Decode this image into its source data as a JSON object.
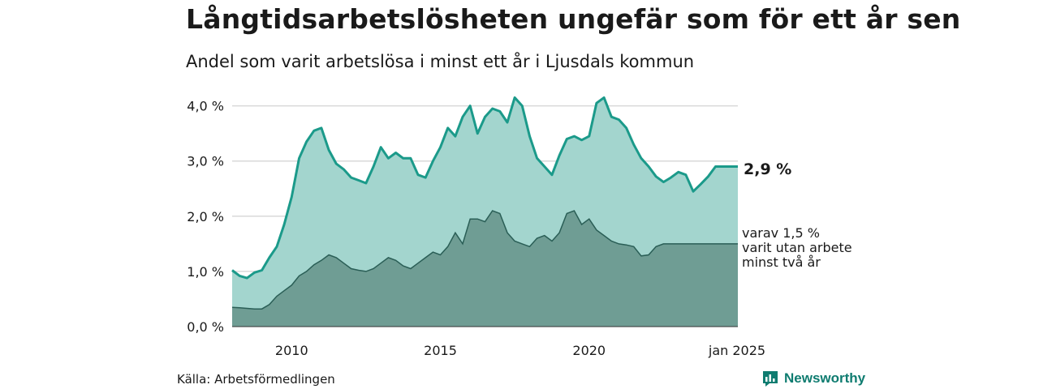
{
  "title": "Långtidsarbetslösheten ungefär som för ett år sen",
  "subtitle": "Andel som varit arbetslösa i minst ett år i Ljusdals kommun",
  "source": "Källa: Arbetsförmedlingen",
  "brand": {
    "name": "Newsworthy",
    "icon": "newsworthy-logo-icon"
  },
  "chart_data": {
    "type": "area",
    "x": [
      "2008-01",
      "2008-04",
      "2008-07",
      "2008-10",
      "2009-01",
      "2009-04",
      "2009-07",
      "2009-10",
      "2010-01",
      "2010-04",
      "2010-07",
      "2010-10",
      "2011-01",
      "2011-04",
      "2011-07",
      "2011-10",
      "2012-01",
      "2012-04",
      "2012-07",
      "2012-10",
      "2013-01",
      "2013-04",
      "2013-07",
      "2013-10",
      "2014-01",
      "2014-04",
      "2014-07",
      "2014-10",
      "2015-01",
      "2015-04",
      "2015-07",
      "2015-10",
      "2016-01",
      "2016-04",
      "2016-07",
      "2016-10",
      "2017-01",
      "2017-04",
      "2017-07",
      "2017-10",
      "2018-01",
      "2018-04",
      "2018-07",
      "2018-10",
      "2019-01",
      "2019-04",
      "2019-07",
      "2019-10",
      "2020-01",
      "2020-04",
      "2020-07",
      "2020-10",
      "2021-01",
      "2021-04",
      "2021-07",
      "2021-10",
      "2022-01",
      "2022-04",
      "2022-07",
      "2022-10",
      "2023-01",
      "2023-04",
      "2023-07",
      "2023-10",
      "2024-01",
      "2024-04",
      "2024-07",
      "2024-10",
      "2025-01"
    ],
    "series": [
      {
        "values": [
          1.02,
          0.92,
          0.88,
          0.98,
          1.02,
          1.25,
          1.45,
          1.85,
          2.35,
          3.05,
          3.35,
          3.55,
          3.6,
          3.2,
          2.95,
          2.85,
          2.7,
          2.65,
          2.6,
          2.9,
          3.25,
          3.05,
          3.15,
          3.05,
          3.05,
          2.75,
          2.7,
          3.0,
          3.25,
          3.6,
          3.45,
          3.8,
          4.0,
          3.5,
          3.8,
          3.95,
          3.9,
          3.7,
          4.15,
          4.0,
          3.45,
          3.05,
          2.9,
          2.75,
          3.1,
          3.4,
          3.45,
          3.38,
          3.45,
          4.05,
          4.15,
          3.8,
          3.75,
          3.6,
          3.3,
          3.05,
          2.9,
          2.72,
          2.62,
          2.7,
          2.8,
          2.75,
          2.45,
          2.58,
          2.72,
          2.9,
          2.9,
          2.9,
          2.9
        ],
        "color": "#1b9a8a"
      },
      {
        "values": [
          0.35,
          0.34,
          0.33,
          0.32,
          0.32,
          0.4,
          0.55,
          0.65,
          0.75,
          0.92,
          1.0,
          1.12,
          1.2,
          1.3,
          1.25,
          1.15,
          1.05,
          1.02,
          1.0,
          1.05,
          1.15,
          1.25,
          1.2,
          1.1,
          1.05,
          1.15,
          1.25,
          1.35,
          1.3,
          1.45,
          1.7,
          1.5,
          1.95,
          1.95,
          1.9,
          2.1,
          2.05,
          1.7,
          1.55,
          1.5,
          1.45,
          1.6,
          1.65,
          1.55,
          1.7,
          2.05,
          2.1,
          1.85,
          1.95,
          1.75,
          1.65,
          1.55,
          1.5,
          1.48,
          1.45,
          1.28,
          1.3,
          1.45,
          1.5,
          1.5,
          1.5,
          1.5,
          1.5,
          1.5,
          1.5,
          1.5,
          1.5,
          1.5,
          1.5
        ],
        "color": "#2a5e56"
      }
    ],
    "end_labels": [
      "2,9 %",
      "varav 1,5 %",
      "varit utan arbete",
      "minst två år"
    ],
    "yticks": [
      "0,0 %",
      "1,0 %",
      "2,0 %",
      "3,0 %",
      "4,0 %"
    ],
    "ytick_values": [
      0,
      1,
      2,
      3,
      4
    ],
    "xticks": [
      "2010",
      "2015",
      "2020",
      "jan 2025"
    ],
    "xtick_values": [
      "2010-01",
      "2015-01",
      "2020-01",
      "2025-01"
    ],
    "ylim": [
      0,
      4.2
    ],
    "grid": true
  }
}
